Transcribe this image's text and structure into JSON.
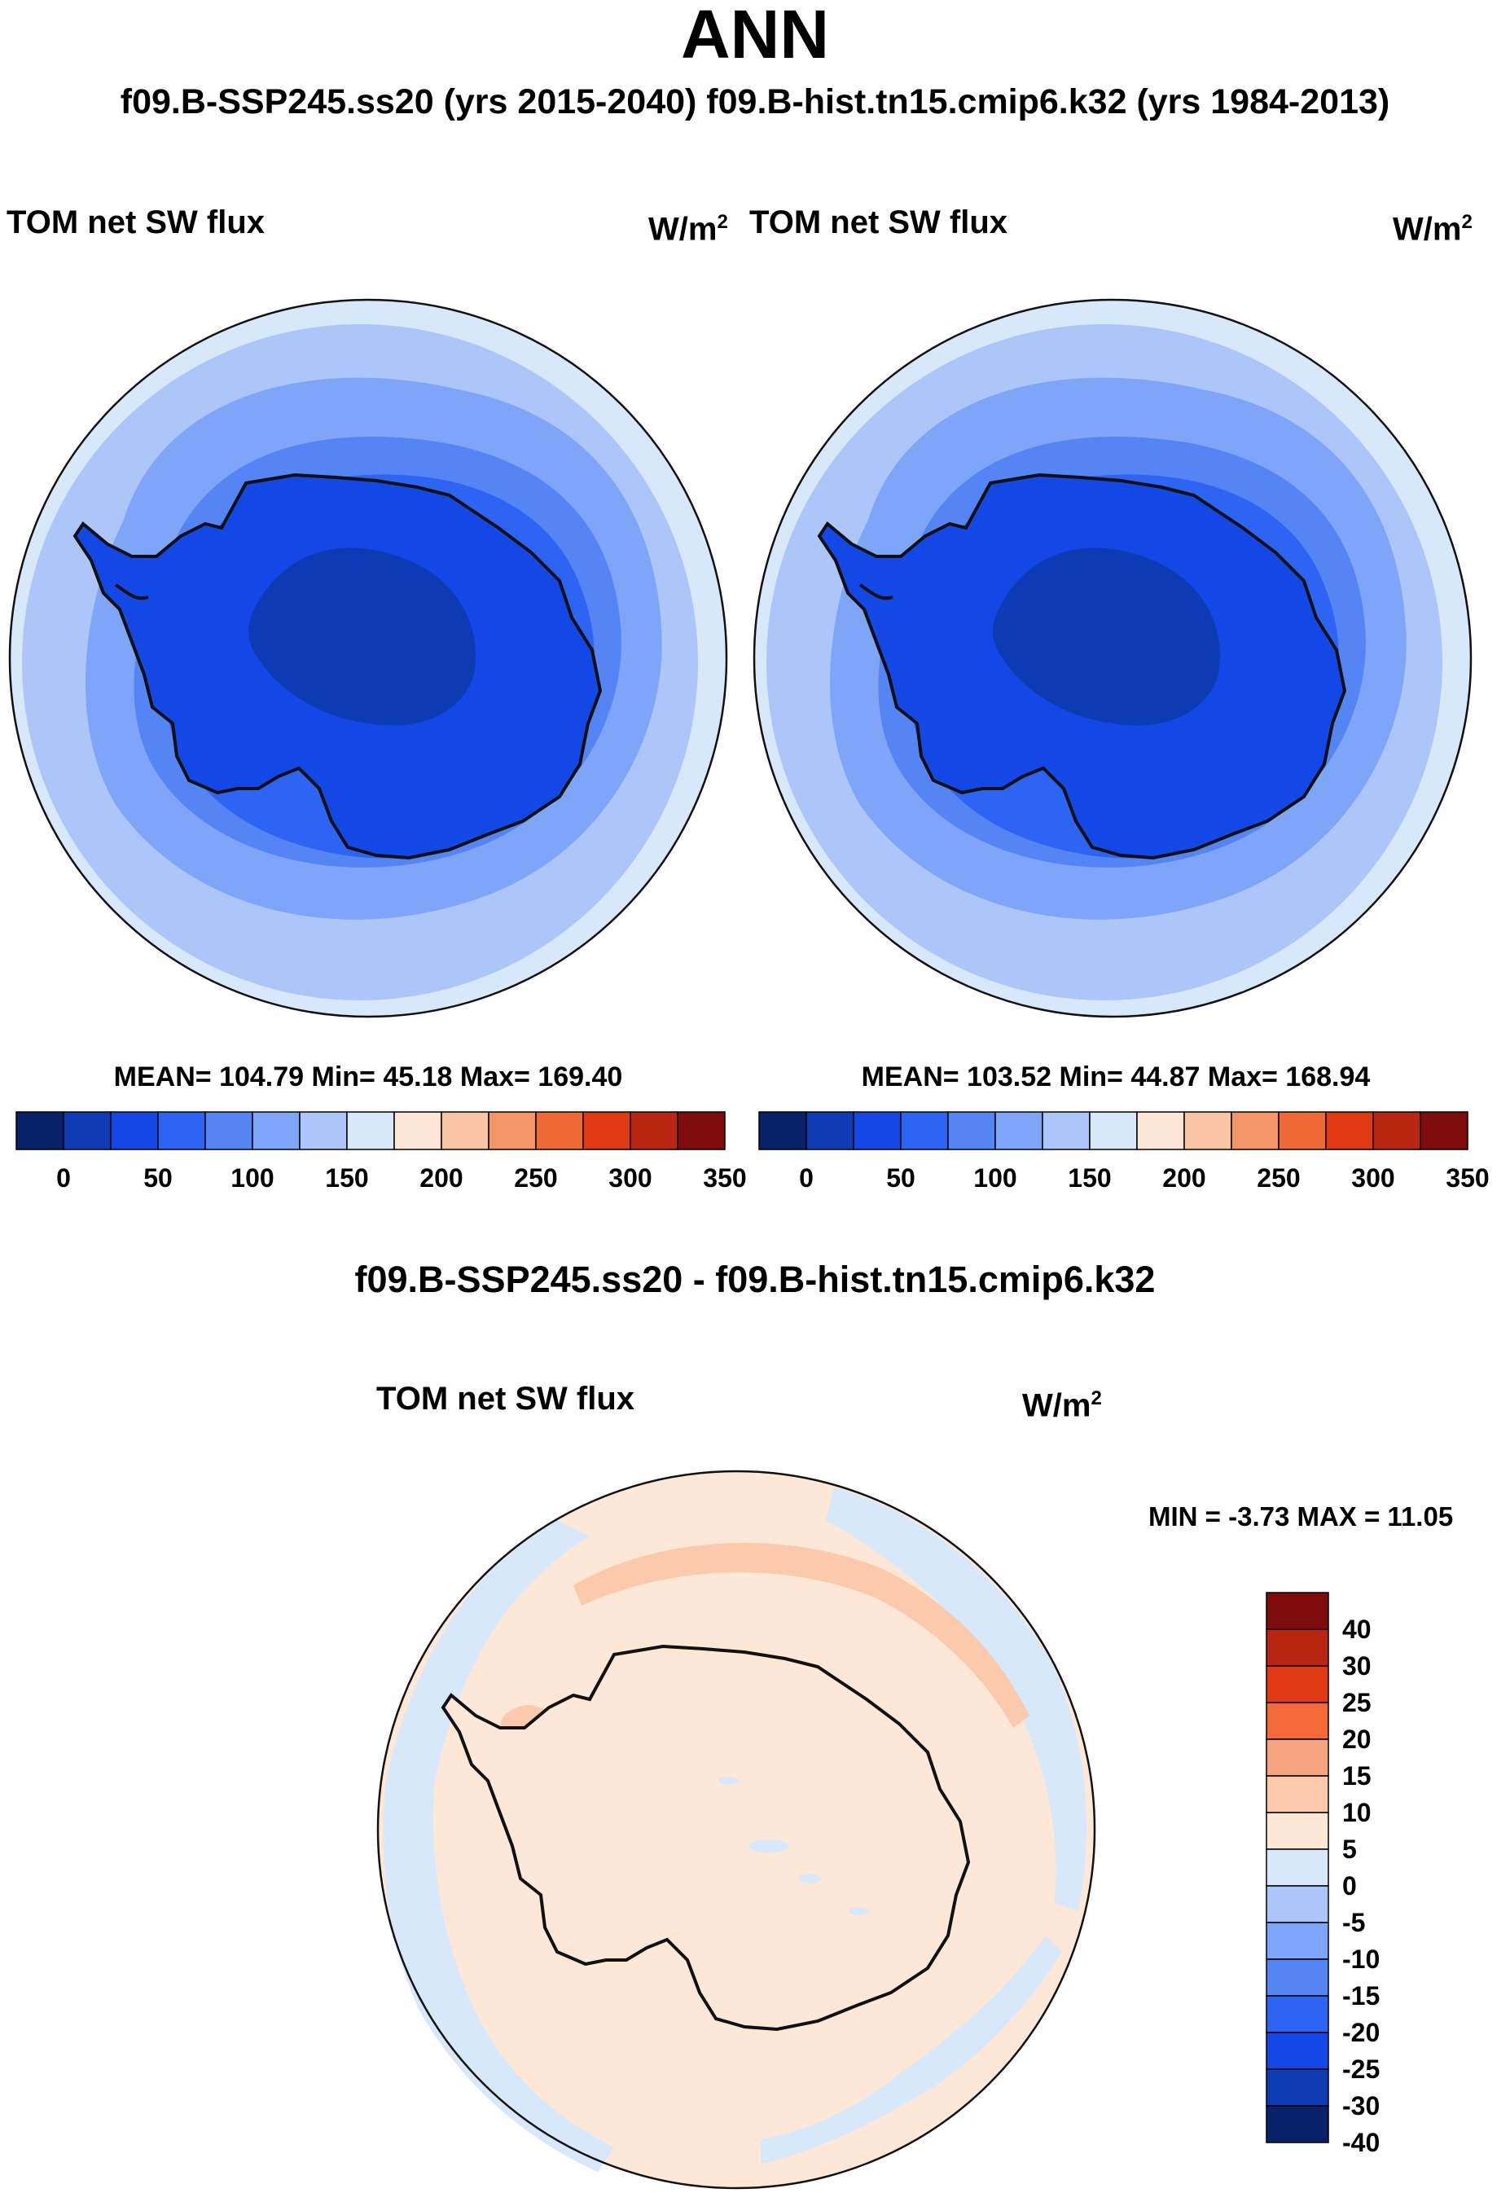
{
  "header": {
    "title": "ANN",
    "subtitle": "f09.B-SSP245.ss20 (yrs 2015-2040)  f09.B-hist.tn15.cmip6.k32 (yrs 1984-2013)"
  },
  "panels": [
    {
      "variable": "TOM net SW flux",
      "units_base": "W/m",
      "units_exp": "2",
      "stats": "MEAN= 104.79  Min=  45.18  Max= 169.40"
    },
    {
      "variable": "TOM net SW flux",
      "units_base": "W/m",
      "units_exp": "2",
      "stats": "MEAN= 103.52  Min=  44.87  Max= 168.94"
    }
  ],
  "diff": {
    "title": "f09.B-SSP245.ss20 - f09.B-hist.tn15.cmip6.k32",
    "variable": "TOM net SW flux",
    "units_base": "W/m",
    "units_exp": "2",
    "stats": "MIN =  -3.73 MAX =  11.05"
  },
  "colorbar_main": {
    "colors": [
      "#08216b",
      "#0c3bb3",
      "#1448e6",
      "#2e64f3",
      "#5585f5",
      "#7ea5f7",
      "#adc6f9",
      "#d7e8fb",
      "#fde8d8",
      "#fbc5a5",
      "#f59668",
      "#ef6a37",
      "#e03a14",
      "#b82510",
      "#7f0c0c"
    ],
    "tick_labels": [
      "0",
      "50",
      "100",
      "150",
      "200",
      "250",
      "300",
      "350"
    ]
  },
  "colorbar_diff": {
    "colors": [
      "#7f0c0c",
      "#b82510",
      "#e03a14",
      "#f4693a",
      "#f7a481",
      "#fbc9ab",
      "#fde8d8",
      "#d7e8fb",
      "#adc6f9",
      "#7ea5f7",
      "#5585f5",
      "#2e64f3",
      "#1448e6",
      "#0c3bb3",
      "#08216b"
    ],
    "tick_labels": [
      "40",
      "30",
      "25",
      "20",
      "15",
      "10",
      "5",
      "0",
      "-5",
      "-10",
      "-15",
      "-20",
      "-25",
      "-30",
      "-40"
    ]
  },
  "chart_data": [
    {
      "type": "heatmap",
      "title": "TOM net SW flux",
      "case": "f09.B-SSP245.ss20 (yrs 2015-2040)",
      "units": "W/m^2",
      "mean": 104.79,
      "min": 45.18,
      "max": 169.4,
      "levels": [
        0,
        25,
        50,
        75,
        100,
        125,
        150,
        175,
        200,
        225,
        250,
        275,
        300,
        325,
        350
      ],
      "projection": "south polar stereographic"
    },
    {
      "type": "heatmap",
      "title": "TOM net SW flux",
      "case": "f09.B-hist.tn15.cmip6.k32 (yrs 1984-2013)",
      "units": "W/m^2",
      "mean": 103.52,
      "min": 44.87,
      "max": 168.94,
      "levels": [
        0,
        25,
        50,
        75,
        100,
        125,
        150,
        175,
        200,
        225,
        250,
        275,
        300,
        325,
        350
      ],
      "projection": "south polar stereographic"
    },
    {
      "type": "heatmap",
      "title": "TOM net SW flux",
      "case": "f09.B-SSP245.ss20 - f09.B-hist.tn15.cmip6.k32",
      "units": "W/m^2",
      "min": -3.73,
      "max": 11.05,
      "levels": [
        -40,
        -30,
        -25,
        -20,
        -15,
        -10,
        -5,
        0,
        5,
        10,
        15,
        20,
        25,
        30,
        40
      ],
      "projection": "south polar stereographic"
    }
  ]
}
